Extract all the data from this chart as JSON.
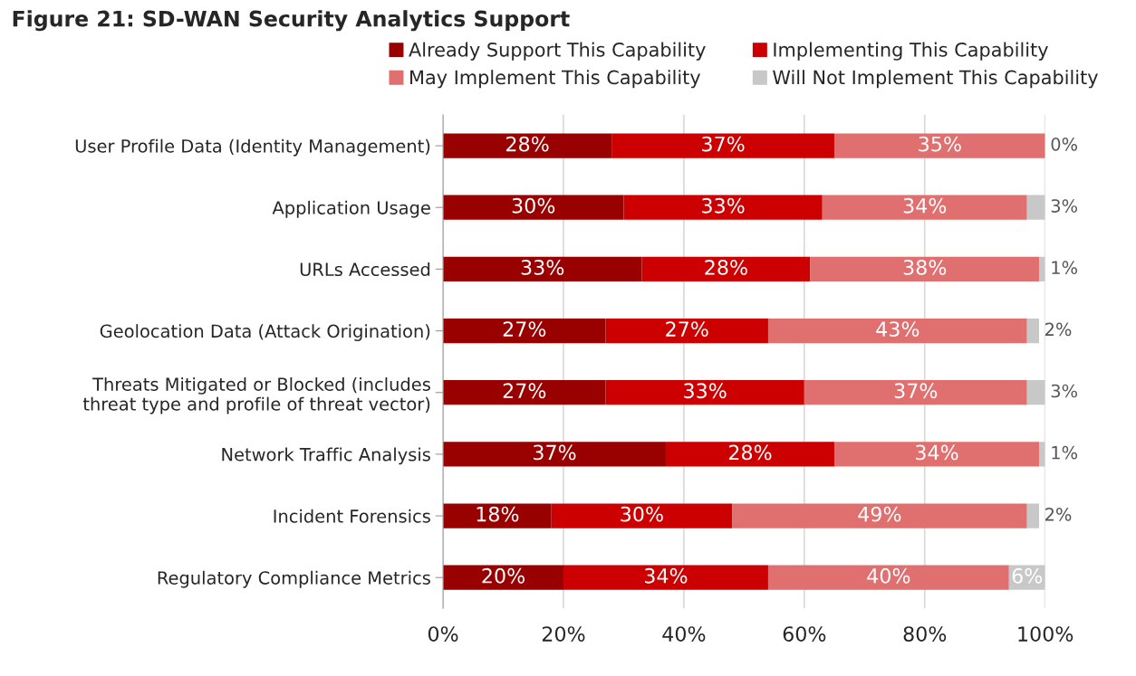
{
  "chart_data": {
    "type": "bar",
    "orientation": "horizontal",
    "stacked": true,
    "title": "Figure 21: SD-WAN Security Analytics Support",
    "categories": [
      "User Profile Data (Identity Management)",
      "Application Usage",
      "URLs Accessed",
      "Geolocation Data (Attack Origination)",
      "Threats Mitigated or Blocked (includes\nthreat type and profile of threat vector)",
      "Network Traffic Analysis",
      "Incident Forensics",
      "Regulatory Compliance Metrics"
    ],
    "series": [
      {
        "name": "Already Support This Capability",
        "color": "#990000",
        "values": [
          28,
          30,
          33,
          27,
          27,
          37,
          18,
          20
        ],
        "value_labels": [
          "28%",
          "30%",
          "33%",
          "27%",
          "27%",
          "37%",
          "18%",
          "20%"
        ]
      },
      {
        "name": "Implementing This Capability",
        "color": "#cc0000",
        "values": [
          37,
          33,
          28,
          27,
          33,
          28,
          30,
          34
        ],
        "value_labels": [
          "37%",
          "33%",
          "28%",
          "27%",
          "33%",
          "28%",
          "30%",
          "34%"
        ]
      },
      {
        "name": "May Implement This Capability",
        "color": "#e06f6f",
        "values": [
          35,
          34,
          38,
          43,
          37,
          34,
          49,
          40
        ],
        "value_labels": [
          "35%",
          "34%",
          "38%",
          "43%",
          "37%",
          "34%",
          "49%",
          "40%"
        ]
      },
      {
        "name": "Will Not Implement This Capability",
        "color": "#c8c8c8",
        "values": [
          0,
          3,
          1,
          2,
          3,
          1,
          2,
          6
        ],
        "value_labels": [
          "0%",
          "3%",
          "1%",
          "2%",
          "3%",
          "1%",
          "2%",
          "6%"
        ]
      }
    ],
    "xlim": [
      0,
      100
    ],
    "xticks": [
      {
        "value": 0,
        "label": "0%"
      },
      {
        "value": 20,
        "label": "20%"
      },
      {
        "value": 40,
        "label": "40%"
      },
      {
        "value": 60,
        "label": "60%"
      },
      {
        "value": 80,
        "label": "80%"
      },
      {
        "value": 100,
        "label": "100%"
      }
    ],
    "grid": "x",
    "legend": "top"
  }
}
